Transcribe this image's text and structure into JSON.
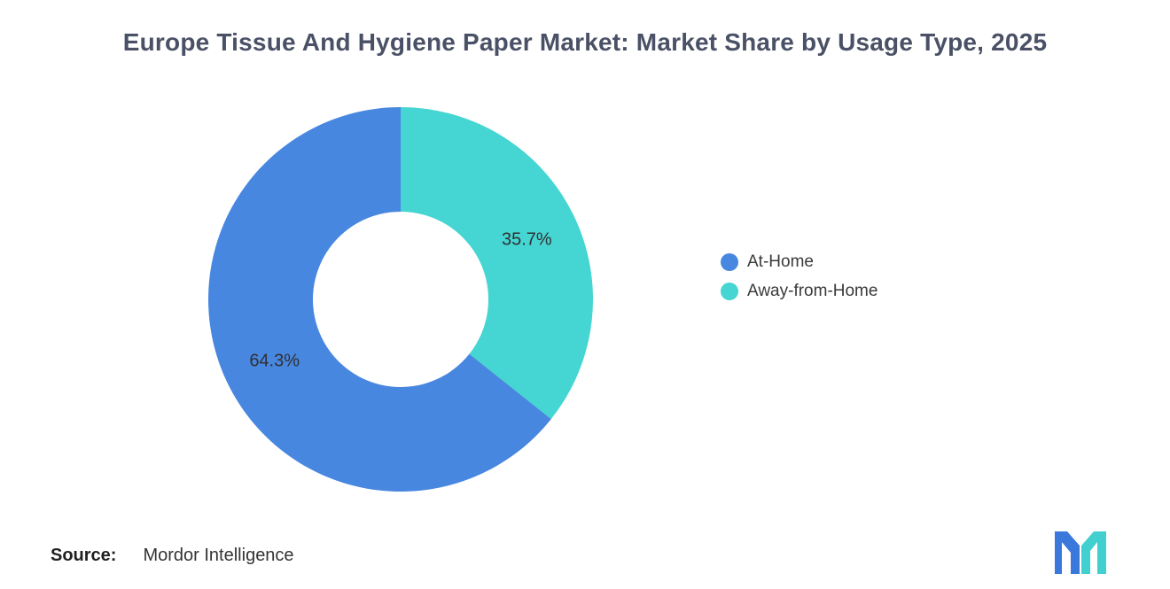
{
  "chart_data": {
    "type": "pie",
    "subtype": "donut",
    "title": "Europe Tissue And Hygiene Paper Market: Market Share by Usage Type, 2025",
    "unit": "%",
    "start_angle_deg_from_top": 0,
    "clockwise": true,
    "slices": [
      {
        "label": "Away-from-Home",
        "value": 35.7,
        "display": "35.7%",
        "color": "#45d5d2"
      },
      {
        "label": "At-Home",
        "value": 64.3,
        "display": "64.3%",
        "color": "#4887e0"
      }
    ],
    "legend": [
      {
        "label": "At-Home",
        "color": "#4887e0"
      },
      {
        "label": "Away-from-Home",
        "color": "#45d5d2"
      }
    ],
    "legend_position": "right",
    "grid": false
  },
  "source": {
    "prefix": "Source:",
    "text": "Mordor Intelligence"
  },
  "logo": {
    "alt": "mordor-intelligence-logo",
    "blue": "#3a78dc",
    "teal": "#41d0cf"
  }
}
